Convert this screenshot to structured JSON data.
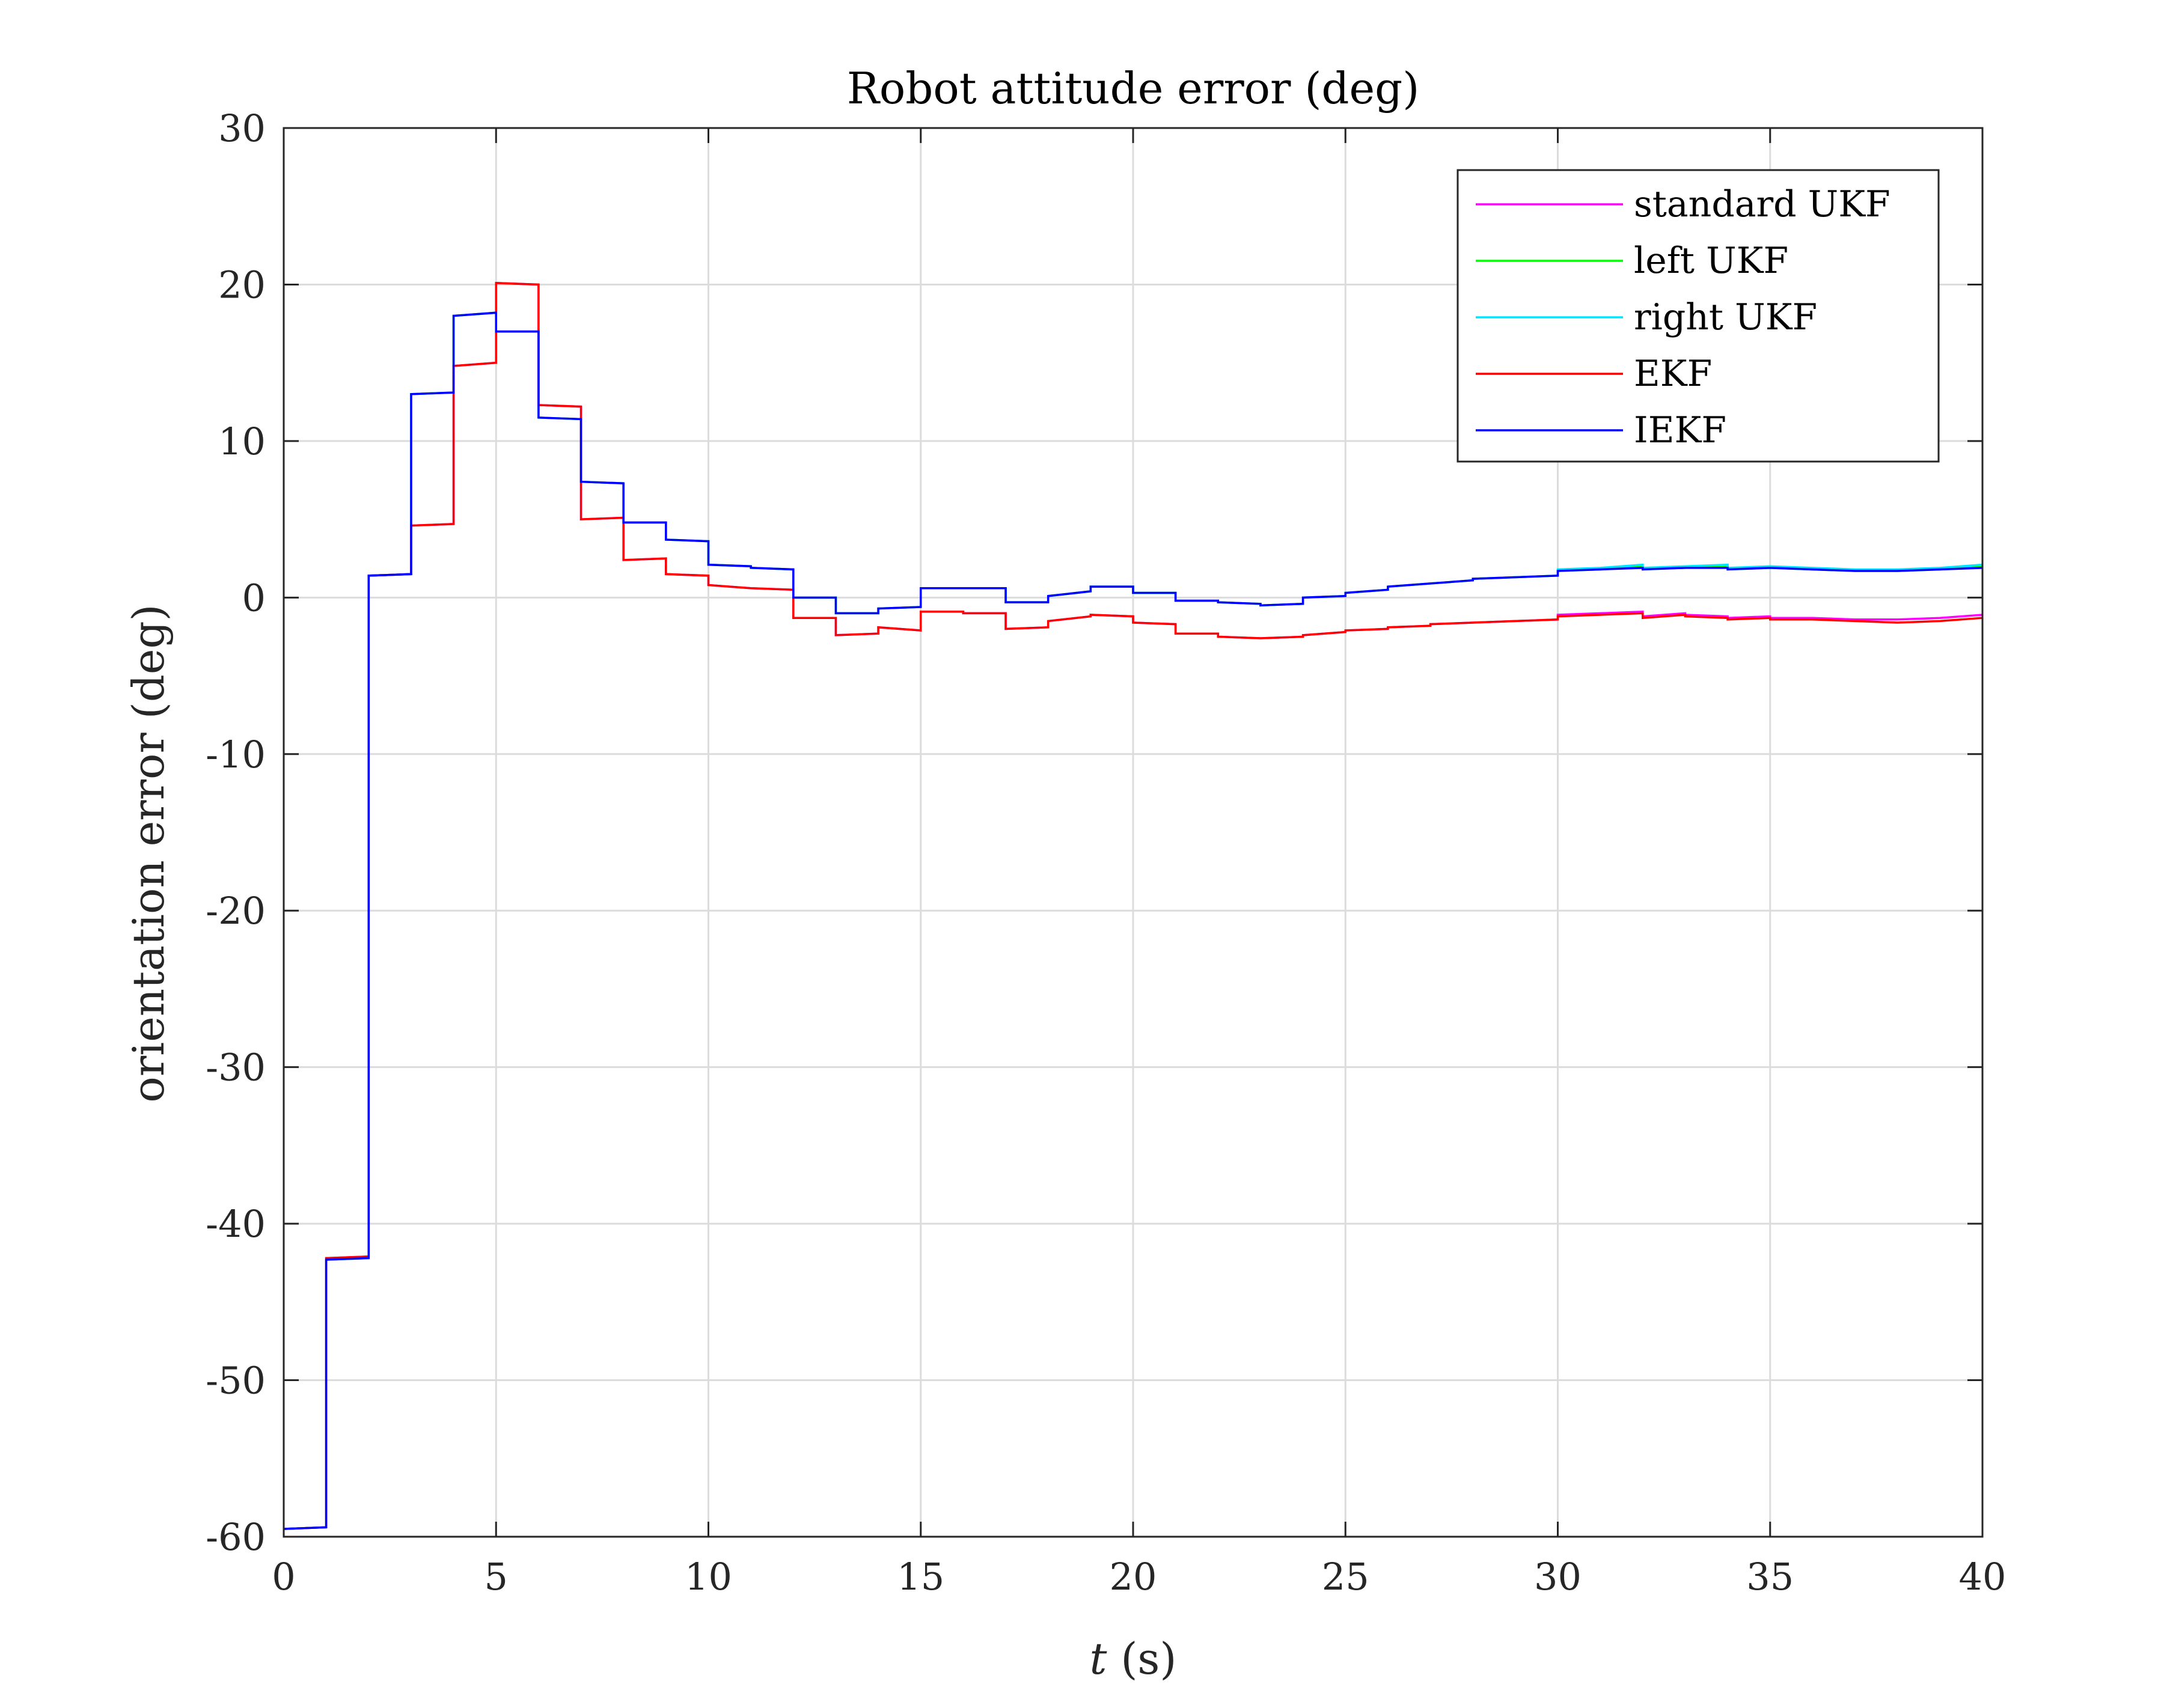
{
  "chart_data": {
    "type": "line",
    "title": "Robot attitude error (deg)",
    "xlabel_italic": "t",
    "xlabel_rest": " (s)",
    "ylabel": "orientation error (deg)",
    "xlim": [
      0,
      40
    ],
    "ylim": [
      -60,
      30
    ],
    "xticks": [
      "0",
      "5",
      "10",
      "15",
      "20",
      "25",
      "30",
      "35",
      "40"
    ],
    "yticks": [
      "30",
      "20",
      "10",
      "0",
      "-10",
      "-20",
      "-30",
      "-40",
      "-50",
      "-60"
    ],
    "grid": true,
    "legend_position": "top-right",
    "series": [
      {
        "name": "standard UKF",
        "color": "#ff00ff",
        "x": [
          0,
          1,
          1,
          2,
          2,
          3,
          3,
          4,
          4,
          5,
          5,
          6,
          6,
          7,
          7,
          8,
          8,
          9,
          9,
          10,
          10,
          11,
          11,
          12,
          12,
          13,
          13,
          14,
          14,
          15,
          15,
          16,
          16,
          17,
          17,
          18,
          18,
          19,
          19,
          20,
          20,
          21,
          21,
          22,
          22,
          23,
          23,
          24,
          24,
          25,
          25,
          26,
          26,
          27,
          27,
          28,
          28,
          29,
          29,
          30,
          30,
          31,
          31,
          32,
          32,
          33,
          33,
          34,
          34,
          35,
          35,
          36,
          36,
          37,
          37,
          38,
          38,
          39,
          39,
          40
        ],
        "y": [
          -59.5,
          -59.4,
          -42.2,
          -42.1,
          1.4,
          1.5,
          4.6,
          4.7,
          14.8,
          15.0,
          20.1,
          20.0,
          12.3,
          12.2,
          5.0,
          5.1,
          2.4,
          2.5,
          1.5,
          1.4,
          0.8,
          0.6,
          0.6,
          0.5,
          -1.3,
          -1.3,
          -2.4,
          -2.3,
          -1.9,
          -2.1,
          -0.9,
          -0.9,
          -1.0,
          -1.0,
          -2.0,
          -1.9,
          -1.5,
          -1.2,
          -1.1,
          -1.2,
          -1.6,
          -1.7,
          -2.3,
          -2.3,
          -2.5,
          -2.6,
          -2.6,
          -2.5,
          -2.4,
          -2.2,
          -2.1,
          -2.0,
          -1.9,
          -1.8,
          -1.7,
          -1.6,
          -1.6,
          -1.5,
          -1.5,
          -1.4,
          -1.1,
          -1.0,
          -1.0,
          -0.9,
          -1.2,
          -1.0,
          -1.1,
          -1.2,
          -1.3,
          -1.2,
          -1.3,
          -1.3,
          -1.3,
          -1.4,
          -1.4,
          -1.4,
          -1.4,
          -1.3,
          -1.3,
          -1.1
        ]
      },
      {
        "name": "left UKF",
        "color": "#00ff00",
        "x": [
          0,
          1,
          1,
          2,
          2,
          3,
          3,
          4,
          4,
          5,
          5,
          6,
          6,
          7,
          7,
          8,
          8,
          9,
          9,
          10,
          10,
          11,
          11,
          12,
          12,
          13,
          13,
          14,
          14,
          15,
          15,
          16,
          16,
          17,
          17,
          18,
          18,
          19,
          19,
          20,
          20,
          21,
          21,
          22,
          22,
          23,
          23,
          24,
          24,
          25,
          25,
          26,
          26,
          27,
          27,
          28,
          28,
          29,
          29,
          30,
          30,
          31,
          31,
          32,
          32,
          33,
          33,
          34,
          34,
          35,
          35,
          36,
          36,
          37,
          37,
          38,
          38,
          39,
          39,
          40
        ],
        "y": [
          -59.5,
          -59.4,
          -42.3,
          -42.2,
          1.4,
          1.5,
          13.0,
          13.1,
          18.0,
          18.2,
          17.0,
          17.0,
          11.5,
          11.4,
          7.4,
          7.3,
          4.8,
          4.8,
          3.7,
          3.6,
          2.1,
          2.0,
          1.9,
          1.8,
          0.0,
          0.0,
          -1.0,
          -1.0,
          -0.7,
          -0.6,
          0.6,
          0.6,
          0.6,
          0.6,
          -0.3,
          -0.3,
          0.1,
          0.4,
          0.7,
          0.7,
          0.3,
          0.3,
          -0.2,
          -0.2,
          -0.3,
          -0.4,
          -0.5,
          -0.4,
          0.0,
          0.1,
          0.3,
          0.5,
          0.7,
          0.9,
          0.9,
          1.1,
          1.2,
          1.3,
          1.3,
          1.4,
          1.7,
          1.8,
          1.8,
          2.0,
          1.8,
          1.9,
          1.9,
          2.0,
          1.8,
          1.9,
          1.9,
          1.8,
          1.8,
          1.7,
          1.7,
          1.7,
          1.7,
          1.8,
          1.8,
          2.0
        ]
      },
      {
        "name": "right UKF",
        "color": "#00e5ff",
        "x": [
          0,
          1,
          1,
          2,
          2,
          3,
          3,
          4,
          4,
          5,
          5,
          6,
          6,
          7,
          7,
          8,
          8,
          9,
          9,
          10,
          10,
          11,
          11,
          12,
          12,
          13,
          13,
          14,
          14,
          15,
          15,
          16,
          16,
          17,
          17,
          18,
          18,
          19,
          19,
          20,
          20,
          21,
          21,
          22,
          22,
          23,
          23,
          24,
          24,
          25,
          25,
          26,
          26,
          27,
          27,
          28,
          28,
          29,
          29,
          30,
          30,
          31,
          31,
          32,
          32,
          33,
          33,
          34,
          34,
          35,
          35,
          36,
          36,
          37,
          37,
          38,
          38,
          39,
          39,
          40
        ],
        "y": [
          -59.5,
          -59.4,
          -42.3,
          -42.2,
          1.4,
          1.5,
          13.0,
          13.1,
          18.0,
          18.2,
          17.0,
          17.0,
          11.5,
          11.4,
          7.4,
          7.3,
          4.8,
          4.8,
          3.7,
          3.6,
          2.1,
          2.0,
          1.9,
          1.8,
          0.0,
          0.0,
          -1.0,
          -1.0,
          -0.7,
          -0.6,
          0.6,
          0.6,
          0.6,
          0.6,
          -0.3,
          -0.3,
          0.1,
          0.4,
          0.7,
          0.7,
          0.3,
          0.3,
          -0.2,
          -0.2,
          -0.3,
          -0.4,
          -0.5,
          -0.4,
          0.0,
          0.1,
          0.3,
          0.5,
          0.7,
          0.9,
          0.9,
          1.1,
          1.2,
          1.3,
          1.3,
          1.4,
          1.8,
          1.9,
          1.9,
          2.1,
          1.9,
          2.0,
          2.0,
          2.1,
          1.9,
          2.0,
          2.0,
          1.9,
          1.9,
          1.8,
          1.8,
          1.8,
          1.8,
          1.9,
          1.9,
          2.1
        ]
      },
      {
        "name": "EKF",
        "color": "#ff0000",
        "x": [
          0,
          1,
          1,
          2,
          2,
          3,
          3,
          4,
          4,
          5,
          5,
          6,
          6,
          7,
          7,
          8,
          8,
          9,
          9,
          10,
          10,
          11,
          11,
          12,
          12,
          13,
          13,
          14,
          14,
          15,
          15,
          16,
          16,
          17,
          17,
          18,
          18,
          19,
          19,
          20,
          20,
          21,
          21,
          22,
          22,
          23,
          23,
          24,
          24,
          25,
          25,
          26,
          26,
          27,
          27,
          28,
          28,
          29,
          29,
          30,
          30,
          31,
          31,
          32,
          32,
          33,
          33,
          34,
          34,
          35,
          35,
          36,
          36,
          37,
          37,
          38,
          38,
          39,
          39,
          40
        ],
        "y": [
          -59.5,
          -59.4,
          -42.2,
          -42.1,
          1.4,
          1.5,
          4.6,
          4.7,
          14.8,
          15.0,
          20.1,
          20.0,
          12.3,
          12.2,
          5.0,
          5.1,
          2.4,
          2.5,
          1.5,
          1.4,
          0.8,
          0.6,
          0.6,
          0.5,
          -1.3,
          -1.3,
          -2.4,
          -2.3,
          -1.9,
          -2.1,
          -0.9,
          -0.9,
          -1.0,
          -1.0,
          -2.0,
          -1.9,
          -1.5,
          -1.2,
          -1.1,
          -1.2,
          -1.6,
          -1.7,
          -2.3,
          -2.3,
          -2.5,
          -2.6,
          -2.6,
          -2.5,
          -2.4,
          -2.2,
          -2.1,
          -2.0,
          -1.9,
          -1.8,
          -1.7,
          -1.6,
          -1.6,
          -1.5,
          -1.5,
          -1.4,
          -1.2,
          -1.1,
          -1.1,
          -1.0,
          -1.3,
          -1.1,
          -1.2,
          -1.3,
          -1.4,
          -1.3,
          -1.4,
          -1.4,
          -1.4,
          -1.5,
          -1.5,
          -1.6,
          -1.6,
          -1.5,
          -1.5,
          -1.3
        ]
      },
      {
        "name": "IEKF",
        "color": "#0000ff",
        "x": [
          0,
          1,
          1,
          2,
          2,
          3,
          3,
          4,
          4,
          5,
          5,
          6,
          6,
          7,
          7,
          8,
          8,
          9,
          9,
          10,
          10,
          11,
          11,
          12,
          12,
          13,
          13,
          14,
          14,
          15,
          15,
          16,
          16,
          17,
          17,
          18,
          18,
          19,
          19,
          20,
          20,
          21,
          21,
          22,
          22,
          23,
          23,
          24,
          24,
          25,
          25,
          26,
          26,
          27,
          27,
          28,
          28,
          29,
          29,
          30,
          30,
          31,
          31,
          32,
          32,
          33,
          33,
          34,
          34,
          35,
          35,
          36,
          36,
          37,
          37,
          38,
          38,
          39,
          39,
          40
        ],
        "y": [
          -59.5,
          -59.4,
          -42.3,
          -42.2,
          1.4,
          1.5,
          13.0,
          13.1,
          18.0,
          18.2,
          17.0,
          17.0,
          11.5,
          11.4,
          7.4,
          7.3,
          4.8,
          4.8,
          3.7,
          3.6,
          2.1,
          2.0,
          1.9,
          1.8,
          0.0,
          0.0,
          -1.0,
          -1.0,
          -0.7,
          -0.6,
          0.6,
          0.6,
          0.6,
          0.6,
          -0.3,
          -0.3,
          0.1,
          0.4,
          0.7,
          0.7,
          0.3,
          0.3,
          -0.2,
          -0.2,
          -0.3,
          -0.4,
          -0.5,
          -0.4,
          0.0,
          0.1,
          0.3,
          0.5,
          0.7,
          0.9,
          0.9,
          1.1,
          1.2,
          1.3,
          1.3,
          1.4,
          1.7,
          1.8,
          1.8,
          1.9,
          1.8,
          1.9,
          1.9,
          1.9,
          1.8,
          1.9,
          1.9,
          1.8,
          1.8,
          1.7,
          1.7,
          1.7,
          1.7,
          1.8,
          1.8,
          1.9
        ]
      }
    ]
  }
}
